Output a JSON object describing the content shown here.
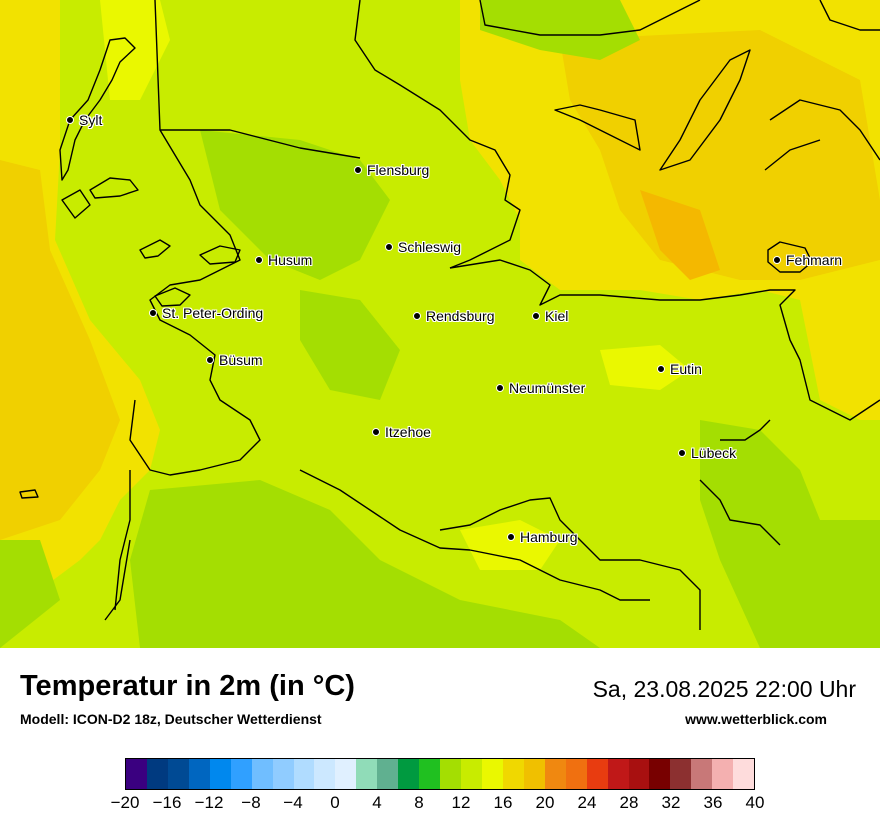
{
  "map": {
    "title": "Temperatur in 2m (in °C)",
    "model": "Modell: ICON-D2 18z, Deutscher Wetterdienst",
    "datetime": "Sa, 23.08.2025 22:00 Uhr",
    "website": "www.wetterblick.com",
    "cities": [
      {
        "name": "Sylt",
        "id": "sylt"
      },
      {
        "name": "Flensburg",
        "id": "flensburg"
      },
      {
        "name": "Schleswig",
        "id": "schleswig"
      },
      {
        "name": "Husum",
        "id": "husum"
      },
      {
        "name": "Fehmarn",
        "id": "fehmarn"
      },
      {
        "name": "St. Peter-Ording",
        "id": "st-peter-ording"
      },
      {
        "name": "Rendsburg",
        "id": "rendsburg"
      },
      {
        "name": "Kiel",
        "id": "kiel"
      },
      {
        "name": "Büsum",
        "id": "buesum"
      },
      {
        "name": "Eutin",
        "id": "eutin"
      },
      {
        "name": "Neumünster",
        "id": "neumuenster"
      },
      {
        "name": "Itzehoe",
        "id": "itzehoe"
      },
      {
        "name": "Lübeck",
        "id": "luebeck"
      },
      {
        "name": "Hamburg",
        "id": "hamburg"
      }
    ],
    "temperature_colors": {
      "c10": "#a4de02",
      "c12": "#c8ec00",
      "c14": "#eaf800",
      "c16": "#f2e200",
      "c18": "#f0d000",
      "c20": "#f4b800"
    }
  },
  "legend": {
    "colors": [
      "#3a0080",
      "#003a80",
      "#004a94",
      "#0066c0",
      "#0088ee",
      "#30a0ff",
      "#70beff",
      "#90ccff",
      "#b0dcff",
      "#cce8ff",
      "#e0f0ff",
      "#90dcb8",
      "#60b090",
      "#009a40",
      "#20c020",
      "#a4de02",
      "#c8ec00",
      "#eaf800",
      "#f0d800",
      "#f0c000",
      "#f08810",
      "#f07010",
      "#e83c10",
      "#c01818",
      "#a81010",
      "#780000",
      "#8c3030",
      "#c87878",
      "#f4b0b0",
      "#fedcdc"
    ],
    "ticks": [
      "−20",
      "−16",
      "−12",
      "−8",
      "−4",
      "0",
      "4",
      "8",
      "12",
      "16",
      "20",
      "24",
      "28",
      "32",
      "36",
      "40"
    ]
  }
}
